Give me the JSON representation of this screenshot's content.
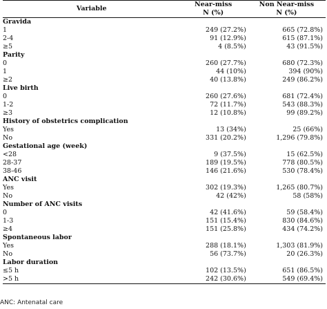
{
  "header": {
    "variable": "Variable",
    "near_miss": "Near-miss",
    "near_miss_unit": "N (%)",
    "non_near_miss": "Non Near-miss",
    "non_near_miss_unit": "N (%)"
  },
  "sections": [
    {
      "title": "Gravida",
      "rows": [
        {
          "label": "1",
          "near": "249 (27.2%)",
          "non": "665 (72.8%)"
        },
        {
          "label": "2-4",
          "near": "91 (12.9%)",
          "non": "615 (87.1%)"
        },
        {
          "label": "≥5",
          "near": "4 (8.5%)",
          "non": "43 (91.5%)"
        }
      ]
    },
    {
      "title": "Parity",
      "rows": [
        {
          "label": "0",
          "near": "260 (27.7%)",
          "non": "680 (72.3%)"
        },
        {
          "label": "1",
          "near": "44 (10%)",
          "non": "394 (90%)"
        },
        {
          "label": "≥2",
          "near": "40 (13.8%)",
          "non": "249 (86.2%)"
        }
      ]
    },
    {
      "title": "Live birth",
      "rows": [
        {
          "label": "0",
          "near": "260 (27.6%)",
          "non": "681 (72.4%)"
        },
        {
          "label": "1-2",
          "near": "72 (11.7%)",
          "non": "543 (88.3%)"
        },
        {
          "label": "≥3",
          "near": "12 (10.8%)",
          "non": "99 (89.2%)"
        }
      ]
    },
    {
      "title": "History of obstetrics complication",
      "rows": [
        {
          "label": "Yes",
          "near": "13 (34%)",
          "non": "25 (66%)"
        },
        {
          "label": "No",
          "near": "331 (20.2%)",
          "non": "1,296 (79.8%)"
        }
      ]
    },
    {
      "title": "Gestational age (week)",
      "rows": [
        {
          "label": "<28",
          "near": "9 (37.5%)",
          "non": "15 (62.5%)"
        },
        {
          "label": "28-37",
          "near": "189 (19.5%)",
          "non": "778 (80.5%)"
        },
        {
          "label": "38-46",
          "near": "146 (21.6%)",
          "non": "530 (78.4%)"
        }
      ]
    },
    {
      "title": "ANC visit",
      "rows": [
        {
          "label": "Yes",
          "near": "302 (19.3%)",
          "non": "1,265 (80.7%)"
        },
        {
          "label": "No",
          "near": "42 (42%)",
          "non": "58 (58%)"
        }
      ]
    },
    {
      "title": "Number of ANC visits",
      "rows": [
        {
          "label": "0",
          "near": "42 (41.6%)",
          "non": "59 (58.4%)"
        },
        {
          "label": "1-3",
          "near": "151 (15.4%)",
          "non": "830 (84.6%)"
        },
        {
          "label": "≥4",
          "near": "151 (25.8%)",
          "non": "434 (74.2%)"
        }
      ]
    },
    {
      "title": "Spontaneous labor",
      "rows": [
        {
          "label": "Yes",
          "near": "288 (18.1%)",
          "non": "1,303 (81.9%)"
        },
        {
          "label": "No",
          "near": "56 (73.7%)",
          "non": "20 (26.3%)"
        }
      ]
    },
    {
      "title": "Labor duration",
      "rows": [
        {
          "label": "≤5 h",
          "near": "102 (13.5%)",
          "non": "651 (86.5%)"
        },
        {
          "label": ">5 h",
          "near": "242 (30.6%)",
          "non": "549 (69.4%)"
        }
      ]
    }
  ],
  "footnote": "ANC: Antenatal care"
}
